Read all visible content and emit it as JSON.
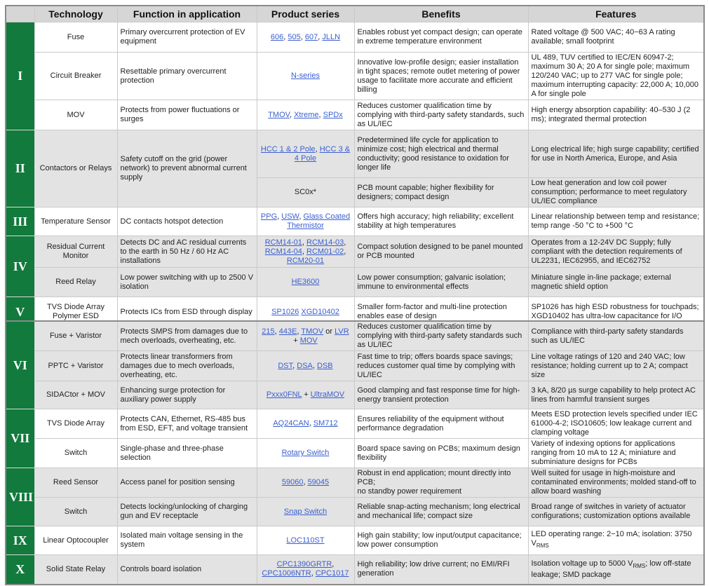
{
  "header": {
    "roman": "",
    "technology": "Technology",
    "function": "Function in application",
    "products": "Product series",
    "benefits": "Benefits",
    "features": "Features"
  },
  "colors": {
    "accent_green": "#117a3c",
    "link": "#3a5fd0",
    "header_bg": "#d6d6d6",
    "shaded_row": "#e3e3e3"
  },
  "tables": [
    {
      "groups": [
        {
          "roman": "I",
          "shaded": false,
          "rows": [
            {
              "technology": "Fuse",
              "function": "Primary overcurrent protection of EV equipment",
              "products": [
                {
                  "t": "606",
                  "link": true
                },
                {
                  "t": ", "
                },
                {
                  "t": "505",
                  "link": true
                },
                {
                  "t": ", "
                },
                {
                  "t": "607",
                  "link": true
                },
                {
                  "t": ", "
                },
                {
                  "t": "JLLN",
                  "link": true
                }
              ],
              "benefits": "Enables robust yet compact design; can operate in extreme temperature environment",
              "features": [
                {
                  "t": "Rated voltage @ 500 VAC; 40−63 A rating available; small footprint"
                }
              ]
            },
            {
              "technology": "Circuit Breaker",
              "function": "Resettable primary overcurrent protection",
              "products": [
                {
                  "t": "N-series",
                  "link": true
                }
              ],
              "benefits": "Innovative low-profile design; easier installation in tight spaces; remote outlet metering of power usage to facilitate more accurate and efficient billing",
              "features": [
                {
                  "t": "UL 489, TUV certified to IEC/EN 60947-2; maximum 30 A; 20 A for single pole; maximum 120/240 VAC; up to 277 VAC for single pole; maximum interrupting capacity: 22,000 A; 10,000 A for single pole"
                }
              ]
            },
            {
              "technology": "MOV",
              "function": "Protects from power fluctuations or surges",
              "products": [
                {
                  "t": "TMOV",
                  "link": true
                },
                {
                  "t": ", "
                },
                {
                  "t": "Xtreme",
                  "link": true
                },
                {
                  "t": ", "
                },
                {
                  "t": "SPDx",
                  "link": true
                }
              ],
              "benefits": "Reduces customer qualification time by complying with third-party safety standards, such as UL/IEC",
              "features": [
                {
                  "t": "High energy absorption capability: 40–530 J (2 ms); integrated thermal protection"
                }
              ]
            }
          ]
        },
        {
          "roman": "II",
          "shaded": true,
          "rows": [
            {
              "technology": "Contactors or Relays",
              "function": "Safety cutoff on the grid (power network) to prevent abnormal current supply",
              "products": [
                {
                  "t": "HCC 1 & 2 Pole",
                  "link": true
                },
                {
                  "t": ", "
                },
                {
                  "t": "HCC 3 & 4 Pole",
                  "link": true
                }
              ],
              "benefits": "Predetermined life cycle for application to minimize cost; high electrical and thermal conductivity; good resistance to oxidation for longer life",
              "features": [
                {
                  "t": "Long electrical life; high surge capability; certified for use in North America, Europe, and Asia"
                }
              ]
            },
            {
              "products": [
                {
                  "t": "SC0x*"
                }
              ],
              "benefits": "PCB mount capable; higher flexibility for designers; compact design",
              "features": [
                {
                  "t": "Low heat generation and low coil power consumption; performance to meet regulatory UL/IEC compliance"
                }
              ]
            }
          ]
        },
        {
          "roman": "III",
          "shaded": false,
          "rows": [
            {
              "technology": "Temperature Sensor",
              "function": "DC contacts hotspot detection",
              "products": [
                {
                  "t": "PPG",
                  "link": true
                },
                {
                  "t": ", "
                },
                {
                  "t": "USW",
                  "link": true
                },
                {
                  "t": ", "
                },
                {
                  "t": "Glass Coated Thermistor",
                  "link": true
                }
              ],
              "benefits": "Offers high accuracy; high reliability; excellent stability at high temperatures",
              "features": [
                {
                  "t": "Linear relationship between temp and resistance; temp range -50 °C to +500 °C"
                }
              ]
            }
          ]
        },
        {
          "roman": "IV",
          "shaded": true,
          "rows": [
            {
              "technology": "Residual Current Monitor",
              "function": "Detects DC and AC residual currents to the earth in 50 Hz / 60 Hz AC installations",
              "products": [
                {
                  "t": "RCM14-01",
                  "link": true
                },
                {
                  "t": ", "
                },
                {
                  "t": "RCM14-03",
                  "link": true
                },
                {
                  "t": ", "
                },
                {
                  "t": "RCM14-04",
                  "link": true
                },
                {
                  "t": ", "
                },
                {
                  "t": "RCM01-02",
                  "link": true
                },
                {
                  "t": ", "
                },
                {
                  "t": "RCM20-01",
                  "link": true
                }
              ],
              "benefits": "Compact solution designed to be panel mounted or PCB mounted",
              "features": [
                {
                  "t": "Operates from a 12-24V DC Supply; fully compliant with the detection requirements of UL2231, IEC62955, and IEC62752"
                }
              ]
            },
            {
              "technology": "Reed Relay",
              "function": "Low power switching with up to 2500 V isolation",
              "products": [
                {
                  "t": "HE3600",
                  "link": true
                }
              ],
              "benefits": "Low power consumption; galvanic isolation; immune to environmental effects",
              "features": [
                {
                  "t": "Miniature single in-line package; external magnetic shield option"
                }
              ]
            }
          ]
        },
        {
          "roman": "V",
          "shaded": false,
          "rows": [
            {
              "technology": "TVS Diode Array Polymer ESD",
              "function": "Protects ICs from ESD through display",
              "products": [
                {
                  "t": "SP1026",
                  "link": true
                },
                {
                  "t": " "
                },
                {
                  "t": "XGD10402",
                  "link": true
                }
              ],
              "benefits": "Smaller form-factor and multi-line protection enables ease of design",
              "features": [
                {
                  "t": "SP1026 has high ESD robustness for touchpads; XGD10402 has ultra-low capacitance for I/O"
                }
              ]
            }
          ]
        }
      ]
    },
    {
      "groups": [
        {
          "roman": "VI",
          "shaded": true,
          "rows": [
            {
              "technology": "Fuse + Varistor",
              "function": "Protects SMPS from damages due to mech overloads, overheating, etc.",
              "products": [
                {
                  "t": "215",
                  "link": true
                },
                {
                  "t": ", "
                },
                {
                  "t": "443E",
                  "link": true
                },
                {
                  "t": ", "
                },
                {
                  "t": "TMOV",
                  "link": true
                },
                {
                  "t": " or "
                },
                {
                  "t": "LVR",
                  "link": true
                },
                {
                  "t": " + "
                },
                {
                  "t": "MOV",
                  "link": true
                }
              ],
              "benefits": "Reduces customer qualification time by complying with third-party safety standards such as UL/IEC",
              "features": [
                {
                  "t": "Compliance with third-party safety standards such as UL/IEC"
                }
              ]
            },
            {
              "technology": "PPTC + Varistor",
              "function": "Protects linear transformers from damages due to mech overloads, overheating, etc.",
              "products": [
                {
                  "t": "DST",
                  "link": true
                },
                {
                  "t": ", "
                },
                {
                  "t": "DSA",
                  "link": true
                },
                {
                  "t": ", "
                },
                {
                  "t": "DSB",
                  "link": true
                }
              ],
              "benefits": "Fast time to trip; offers boards space savings; reduces customer qual time by complying with UL/IEC",
              "features": [
                {
                  "t": "Line voltage ratings of 120 and 240 VAC; low resistance; holding current up to 2 A; compact size"
                }
              ]
            },
            {
              "technology": "SIDACtor + MOV",
              "function": "Enhancing surge protection for auxiliary power supply",
              "products": [
                {
                  "t": "Pxxx0FNL",
                  "link": true
                },
                {
                  "t": " + "
                },
                {
                  "t": "UltraMOV",
                  "link": true
                }
              ],
              "benefits": "Good clamping and fast response time for high-energy transient protection",
              "features": [
                {
                  "t": "3 kA, 8/20 µs surge capability to help protect AC lines from harmful transient surges"
                }
              ]
            }
          ]
        },
        {
          "roman": "VII",
          "shaded": false,
          "rows": [
            {
              "technology": "TVS Diode Array",
              "function": "Protects CAN, Ethernet, RS-485 bus from ESD, EFT, and voltage transient",
              "products": [
                {
                  "t": "AQ24CAN",
                  "link": true
                },
                {
                  "t": ", "
                },
                {
                  "t": "SM712",
                  "link": true
                }
              ],
              "benefits": "Ensures reliability of the equipment without performance degradation",
              "features": [
                {
                  "t": "Meets ESD protection levels specified under IEC 61000-4-2; ISO10605; low leakage current and clamping voltage"
                }
              ]
            },
            {
              "technology": "Switch",
              "function": "Single-phase and three-phase selection",
              "products": [
                {
                  "t": "Rotary Switch",
                  "link": true
                }
              ],
              "benefits": "Board space saving on PCBs; maximum design flexibility",
              "features": [
                {
                  "t": "Variety of indexing options for applications ranging from 10 mA to 12 A; miniature and subminiature designs for PCBs"
                }
              ]
            }
          ]
        },
        {
          "roman": "VIII",
          "shaded": true,
          "rows": [
            {
              "technology": "Reed Sensor",
              "function": "Access panel for position sensing",
              "products": [
                {
                  "t": "59060",
                  "link": true
                },
                {
                  "t": ", "
                },
                {
                  "t": "59045",
                  "link": true
                }
              ],
              "benefits": "Robust in end application; mount directly into PCB;\nno standby power requirement",
              "features": [
                {
                  "t": "Well suited for usage in high-moisture and contaminated environments; molded stand-off to allow board washing"
                }
              ]
            },
            {
              "technology": "Switch",
              "function": "Detects locking/unlocking of charging gun and EV receptacle",
              "products": [
                {
                  "t": "Snap Switch",
                  "link": true
                }
              ],
              "benefits": "Reliable snap-acting mechanism; long electrical and mechanical life; compact size",
              "features": [
                {
                  "t": "Broad range of switches in variety of actuator configurations; customization options available"
                }
              ]
            }
          ]
        },
        {
          "roman": "IX",
          "shaded": false,
          "rows": [
            {
              "technology": "Linear Optocoupler",
              "function": "Isolated main voltage sensing in the system",
              "products": [
                {
                  "t": "LOC110ST",
                  "link": true
                }
              ],
              "benefits": "High gain stability; low input/output capacitance; low power consumption",
              "features": [
                {
                  "t": "LED operating range: 2−10 mA; isolation: 3750 V"
                },
                {
                  "t": "RMS",
                  "sub": true
                }
              ]
            }
          ]
        },
        {
          "roman": "X",
          "shaded": true,
          "rows": [
            {
              "technology": "Solid State Relay",
              "function": "Controls board isolation",
              "products": [
                {
                  "t": "CPC1390GRTR",
                  "link": true
                },
                {
                  "t": ", "
                },
                {
                  "t": "CPC1006NTR",
                  "link": true
                },
                {
                  "t": ", "
                },
                {
                  "t": "CPC1017",
                  "link": true
                }
              ],
              "benefits": "High reliability; low drive current; no EMI/RFI generation",
              "features": [
                {
                  "t": "Isolation voltage up to 5000 V"
                },
                {
                  "t": "RMS",
                  "sub": true
                },
                {
                  "t": "; low off-state leakage; SMD package"
                }
              ]
            }
          ]
        }
      ]
    }
  ]
}
